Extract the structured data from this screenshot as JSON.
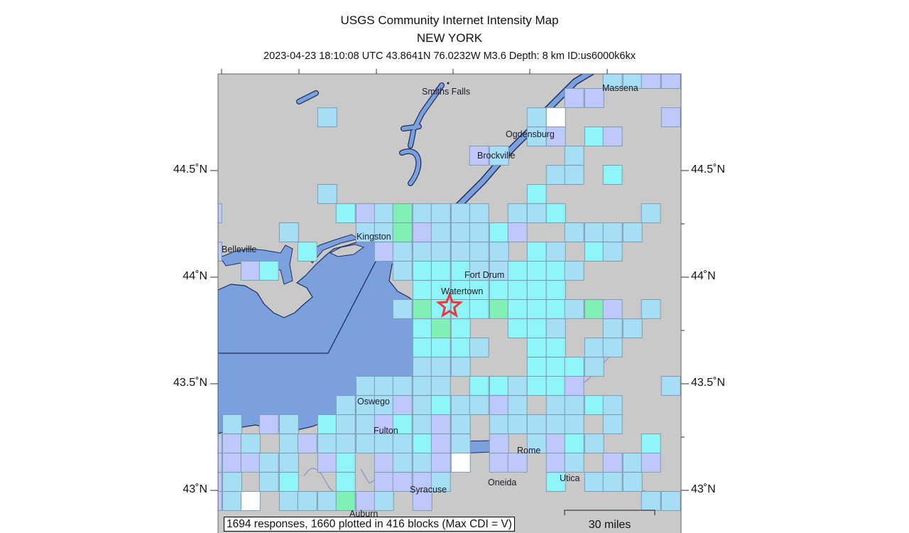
{
  "header": {
    "title": "USGS Community Internet Intensity Map",
    "region": "NEW YORK",
    "event_line": "2023-04-23 18:10:08 UTC 43.8641N 76.0232W M3.6 Depth: 8 km ID:us6000k6kx"
  },
  "epicenter": {
    "lat": 43.8641,
    "lon": -76.0232,
    "icon": "star-icon",
    "color": "#e8393b"
  },
  "latitude_labels": {
    "lat_44_5": "44.5˚N",
    "lat_44": "44˚N",
    "lat_43_5": "43.5˚N",
    "lat_43": "43˚N"
  },
  "places": {
    "smiths_falls": "Smiths Falls",
    "massena": "Massena",
    "ogdensburg": "Ogdensburg",
    "brockville": "Brockville",
    "kingston": "Kingston",
    "belleville": "Belleville",
    "fort_drum": "Fort Drum",
    "watertown": "Watertown",
    "oswego": "Oswego",
    "fulton": "Fulton",
    "rome": "Rome",
    "syracuse": "Syracuse",
    "oneida": "Oneida",
    "utica": "Utica",
    "auburn": "Auburn"
  },
  "footer": {
    "summary": "1694 responses, 1660 plotted in 416 blocks (Max CDI = V)",
    "scale_bar": "30 miles"
  },
  "colors": {
    "land": "#c9c9c9",
    "water": "#7aa0de",
    "cdi": {
      "I": "#ffffff",
      "II": "#bfc8fa",
      "III": "#a6def6",
      "IV": "#8ef6f8",
      "V": "#80f0b4"
    }
  },
  "map_data": {
    "blocks": [
      {
        "lat": 44.93,
        "cells": [
          [
            -74.96,
            "III"
          ],
          [
            -74.83,
            "III"
          ],
          [
            -74.71,
            "II"
          ],
          [
            -74.58,
            "II"
          ]
        ]
      },
      {
        "lat": 44.84,
        "cells": [
          [
            -75.21,
            "II"
          ],
          [
            -75.08,
            "II"
          ]
        ]
      },
      {
        "lat": 44.75,
        "cells": [
          [
            -76.82,
            "III"
          ],
          [
            -75.455,
            "III"
          ],
          [
            -75.33,
            "I"
          ],
          [
            -74.58,
            "II"
          ]
        ]
      },
      {
        "lat": 44.66,
        "cells": [
          [
            -75.455,
            "III"
          ],
          [
            -75.33,
            "II"
          ],
          [
            -75.08,
            "IV"
          ],
          [
            -74.96,
            "II"
          ]
        ]
      },
      {
        "lat": 44.57,
        "cells": [
          [
            -75.83,
            "II"
          ],
          [
            -75.7,
            "III"
          ],
          [
            -75.21,
            "III"
          ]
        ]
      },
      {
        "lat": 44.48,
        "cells": [
          [
            -75.33,
            "III"
          ],
          [
            -75.21,
            "III"
          ],
          [
            -74.96,
            "IV"
          ]
        ]
      },
      {
        "lat": 44.39,
        "cells": [
          [
            -76.82,
            "III"
          ],
          [
            -75.455,
            "IV"
          ]
        ]
      },
      {
        "lat": 44.3,
        "cells": [
          [
            -77.57,
            "II"
          ],
          [
            -76.7,
            "IV"
          ],
          [
            -76.57,
            "II"
          ],
          [
            -76.45,
            "III"
          ],
          [
            -76.33,
            "V"
          ],
          [
            -76.2,
            "III"
          ],
          [
            -76.08,
            "III"
          ],
          [
            -75.95,
            "III"
          ],
          [
            -75.83,
            "III"
          ],
          [
            -75.58,
            "III"
          ],
          [
            -75.455,
            "III"
          ],
          [
            -75.33,
            "IV"
          ],
          [
            -74.71,
            "III"
          ]
        ]
      },
      {
        "lat": 44.21,
        "cells": [
          [
            -77.07,
            "III"
          ],
          [
            -76.57,
            "III"
          ],
          [
            -76.45,
            "III"
          ],
          [
            -76.33,
            "V"
          ],
          [
            -76.2,
            "II"
          ],
          [
            -76.08,
            "III"
          ],
          [
            -75.95,
            "III"
          ],
          [
            -75.83,
            "III"
          ],
          [
            -75.7,
            "IV"
          ],
          [
            -75.58,
            "II"
          ],
          [
            -75.21,
            "III"
          ],
          [
            -75.08,
            "III"
          ],
          [
            -74.96,
            "III"
          ],
          [
            -74.83,
            "III"
          ]
        ]
      },
      {
        "lat": 44.12,
        "cells": [
          [
            -77.57,
            "II"
          ],
          [
            -76.95,
            "IV"
          ],
          [
            -76.45,
            "II"
          ],
          [
            -76.33,
            "III"
          ],
          [
            -76.2,
            "III"
          ],
          [
            -76.08,
            "III"
          ],
          [
            -75.95,
            "III"
          ],
          [
            -75.83,
            "III"
          ],
          [
            -75.7,
            "III"
          ],
          [
            -75.455,
            "IV"
          ],
          [
            -75.33,
            "III"
          ],
          [
            -75.08,
            "IV"
          ],
          [
            -74.96,
            "III"
          ]
        ]
      },
      {
        "lat": 44.03,
        "cells": [
          [
            -77.32,
            "II"
          ],
          [
            -77.2,
            "IV"
          ],
          [
            -76.33,
            "III"
          ],
          [
            -76.2,
            "IV"
          ],
          [
            -76.08,
            "IV"
          ],
          [
            -75.95,
            "IV"
          ],
          [
            -75.83,
            "III"
          ],
          [
            -75.7,
            "III"
          ],
          [
            -75.58,
            "IV"
          ],
          [
            -75.455,
            "IV"
          ],
          [
            -75.33,
            "IV"
          ],
          [
            -75.21,
            "III"
          ]
        ]
      },
      {
        "lat": 43.94,
        "cells": [
          [
            -76.2,
            "IV"
          ],
          [
            -76.08,
            "IV"
          ],
          [
            -75.95,
            "IV"
          ],
          [
            -75.83,
            "IV"
          ],
          [
            -75.7,
            "IV"
          ],
          [
            -75.58,
            "IV"
          ],
          [
            -75.455,
            "IV"
          ],
          [
            -75.33,
            "IV"
          ]
        ]
      },
      {
        "lat": 43.85,
        "cells": [
          [
            -76.33,
            "III"
          ],
          [
            -76.2,
            "V"
          ],
          [
            -76.08,
            "IV"
          ],
          [
            -75.95,
            "IV"
          ],
          [
            -75.83,
            "IV"
          ],
          [
            -75.7,
            "V"
          ],
          [
            -75.58,
            "IV"
          ],
          [
            -75.455,
            "IV"
          ],
          [
            -75.33,
            "IV"
          ],
          [
            -75.21,
            "III"
          ],
          [
            -75.08,
            "V"
          ],
          [
            -74.96,
            "II"
          ],
          [
            -74.71,
            "III"
          ]
        ]
      },
      {
        "lat": 43.76,
        "cells": [
          [
            -76.2,
            "IV"
          ],
          [
            -76.08,
            "V"
          ],
          [
            -75.95,
            "IV"
          ],
          [
            -75.58,
            "IV"
          ],
          [
            -75.455,
            "IV"
          ],
          [
            -75.33,
            "III"
          ],
          [
            -74.96,
            "III"
          ],
          [
            -74.83,
            "III"
          ]
        ]
      },
      {
        "lat": 43.67,
        "cells": [
          [
            -76.2,
            "IV"
          ],
          [
            -76.08,
            "IV"
          ],
          [
            -75.95,
            "IV"
          ],
          [
            -75.83,
            "III"
          ],
          [
            -75.455,
            "IV"
          ],
          [
            -75.33,
            "IV"
          ],
          [
            -75.08,
            "III"
          ],
          [
            -74.96,
            "III"
          ]
        ]
      },
      {
        "lat": 43.58,
        "cells": [
          [
            -76.2,
            "III"
          ],
          [
            -76.08,
            "III"
          ],
          [
            -75.95,
            "III"
          ],
          [
            -75.455,
            "IV"
          ],
          [
            -75.33,
            "IV"
          ],
          [
            -75.21,
            "IV"
          ],
          [
            -75.08,
            "III"
          ]
        ]
      },
      {
        "lat": 43.49,
        "cells": [
          [
            -76.57,
            "III"
          ],
          [
            -76.45,
            "III"
          ],
          [
            -76.33,
            "III"
          ],
          [
            -76.2,
            "III"
          ],
          [
            -76.08,
            "III"
          ],
          [
            -75.83,
            "IV"
          ],
          [
            -75.7,
            "IV"
          ],
          [
            -75.58,
            "III"
          ],
          [
            -75.455,
            "IV"
          ],
          [
            -75.33,
            "IV"
          ],
          [
            -75.21,
            "II"
          ],
          [
            -74.58,
            "III"
          ]
        ]
      },
      {
        "lat": 43.4,
        "cells": [
          [
            -76.7,
            "III"
          ],
          [
            -76.57,
            "III"
          ],
          [
            -76.45,
            "III"
          ],
          [
            -76.33,
            "II"
          ],
          [
            -76.2,
            "III"
          ],
          [
            -76.08,
            "IV"
          ],
          [
            -75.95,
            "III"
          ],
          [
            -75.83,
            "III"
          ],
          [
            -75.7,
            "II"
          ],
          [
            -75.58,
            "III"
          ],
          [
            -75.33,
            "III"
          ],
          [
            -75.21,
            "III"
          ],
          [
            -75.08,
            "IV"
          ],
          [
            -74.96,
            "III"
          ]
        ]
      },
      {
        "lat": 43.31,
        "cells": [
          [
            -77.44,
            "III"
          ],
          [
            -77.2,
            "II"
          ],
          [
            -77.07,
            "III"
          ],
          [
            -76.82,
            "IV"
          ],
          [
            -76.7,
            "III"
          ],
          [
            -76.57,
            "III"
          ],
          [
            -76.45,
            "II"
          ],
          [
            -76.33,
            "IV"
          ],
          [
            -76.2,
            "III"
          ],
          [
            -76.08,
            "II"
          ],
          [
            -75.95,
            "III"
          ],
          [
            -75.7,
            "III"
          ],
          [
            -75.58,
            "III"
          ],
          [
            -75.455,
            "III"
          ],
          [
            -75.33,
            "III"
          ],
          [
            -75.21,
            "III"
          ],
          [
            -74.96,
            "III"
          ]
        ]
      },
      {
        "lat": 43.22,
        "cells": [
          [
            -77.57,
            "II"
          ],
          [
            -77.44,
            "II"
          ],
          [
            -77.32,
            "III"
          ],
          [
            -77.07,
            "III"
          ],
          [
            -76.95,
            "II"
          ],
          [
            -76.82,
            "III"
          ],
          [
            -76.7,
            "III"
          ],
          [
            -76.57,
            "III"
          ],
          [
            -76.45,
            "III"
          ],
          [
            -76.33,
            "III"
          ],
          [
            -76.2,
            "IV"
          ],
          [
            -76.08,
            "II"
          ],
          [
            -75.95,
            "III"
          ],
          [
            -75.7,
            "II"
          ],
          [
            -75.455,
            "III"
          ],
          [
            -75.33,
            "II"
          ],
          [
            -75.21,
            "IV"
          ],
          [
            -75.08,
            "III"
          ],
          [
            -74.71,
            "IV"
          ]
        ]
      },
      {
        "lat": 43.13,
        "cells": [
          [
            -77.57,
            "II"
          ],
          [
            -77.44,
            "II"
          ],
          [
            -77.32,
            "II"
          ],
          [
            -77.2,
            "III"
          ],
          [
            -77.07,
            "III"
          ],
          [
            -76.82,
            "II"
          ],
          [
            -76.7,
            "IV"
          ],
          [
            -76.45,
            "II"
          ],
          [
            -76.33,
            "III"
          ],
          [
            -76.2,
            "III"
          ],
          [
            -76.08,
            "II"
          ],
          [
            -75.95,
            "I"
          ],
          [
            -75.7,
            "II"
          ],
          [
            -75.58,
            "II"
          ],
          [
            -75.33,
            "II"
          ],
          [
            -75.21,
            "III"
          ],
          [
            -74.96,
            "II"
          ],
          [
            -74.83,
            "III"
          ],
          [
            -74.71,
            "II"
          ]
        ]
      },
      {
        "lat": 43.04,
        "cells": [
          [
            -77.57,
            "II"
          ],
          [
            -77.44,
            "III"
          ],
          [
            -77.2,
            "III"
          ],
          [
            -77.07,
            "IV"
          ],
          [
            -76.7,
            "IV"
          ],
          [
            -76.45,
            "II"
          ],
          [
            -76.33,
            "II"
          ],
          [
            -76.2,
            "II"
          ],
          [
            -76.08,
            "III"
          ],
          [
            -75.33,
            "IV"
          ],
          [
            -75.08,
            "III"
          ],
          [
            -74.96,
            "III"
          ],
          [
            -74.83,
            "III"
          ]
        ]
      },
      {
        "lat": 42.95,
        "cells": [
          [
            -77.57,
            "II"
          ],
          [
            -77.44,
            "III"
          ],
          [
            -77.32,
            "I"
          ],
          [
            -77.07,
            "III"
          ],
          [
            -76.95,
            "III"
          ],
          [
            -76.82,
            "III"
          ],
          [
            -76.7,
            "V"
          ],
          [
            -76.57,
            "II"
          ],
          [
            -76.45,
            "III"
          ],
          [
            -76.2,
            "II"
          ],
          [
            -74.71,
            "III"
          ],
          [
            -74.58,
            "III"
          ]
        ]
      }
    ]
  }
}
